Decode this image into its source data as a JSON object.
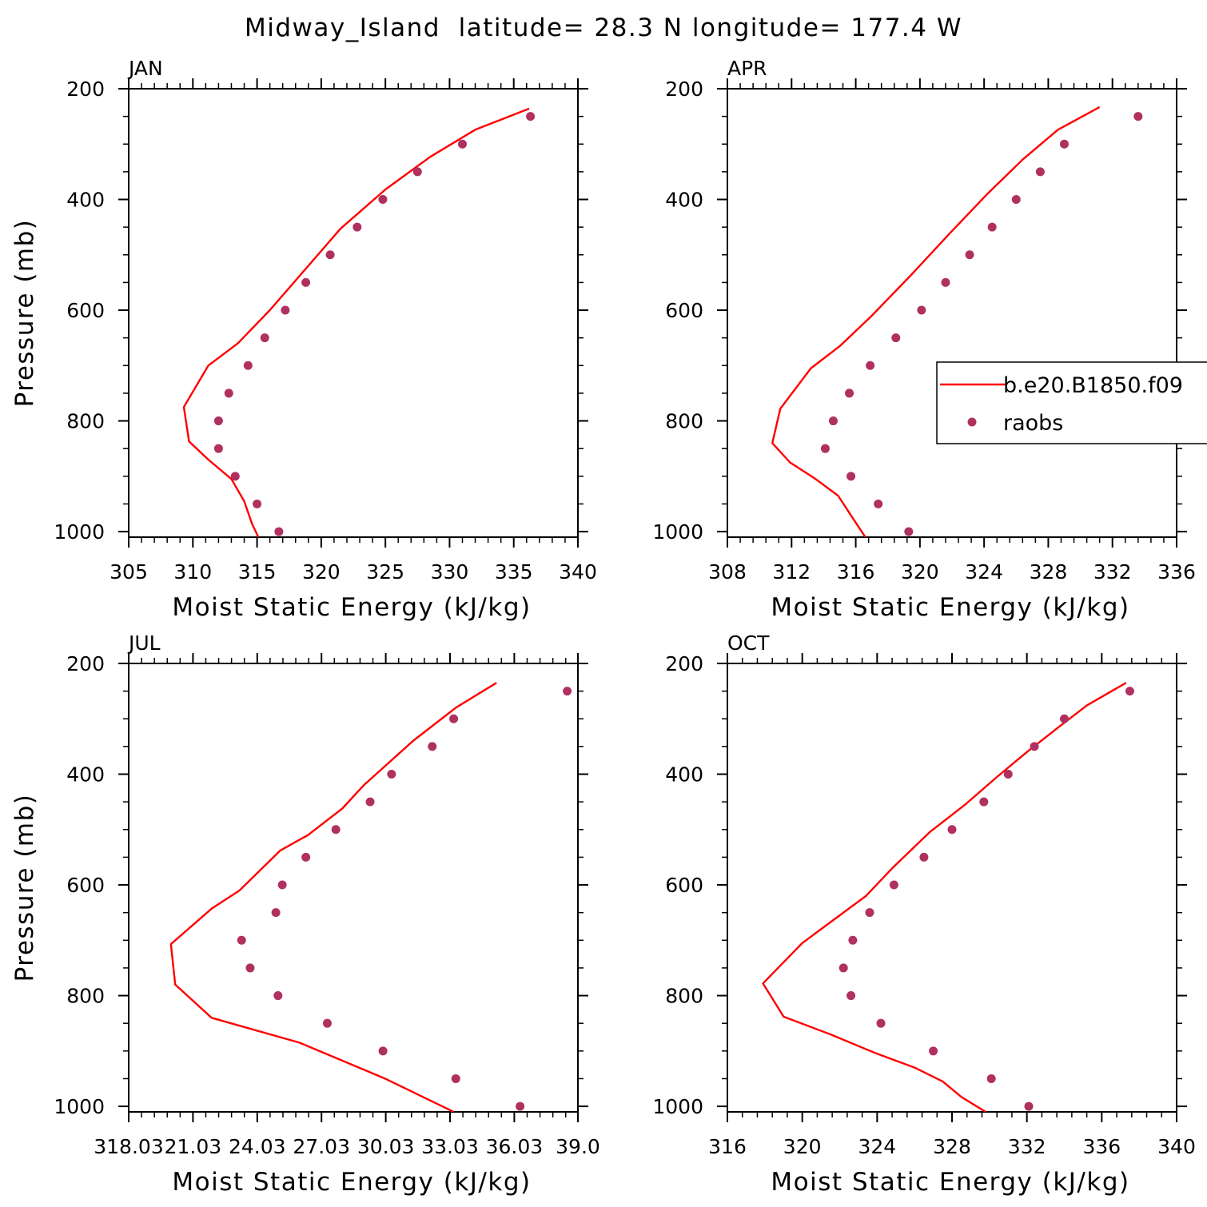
{
  "figure": {
    "title": "Midway_Island  latitude= 28.3 N longitude= 177.4 W"
  },
  "legend": {
    "entries": [
      {
        "label": "b.e20.B1850.f09",
        "type": "line",
        "color": "#ff0000"
      },
      {
        "label": "raobs",
        "type": "marker",
        "color": "#b03060"
      }
    ]
  },
  "chart_data": [
    {
      "type": "line",
      "panel_label": "JAN",
      "xlabel": "Moist Static Energy (kJ/kg)",
      "ylabel": "Pressure (mb)",
      "xlim": [
        305,
        340
      ],
      "ylim": [
        1010,
        200
      ],
      "y_inverted": true,
      "x_tick_labels": [
        "305",
        "310",
        "315",
        "320",
        "325",
        "330",
        "335",
        "340"
      ],
      "y_tick_labels": [
        "200",
        "400",
        "600",
        "800",
        "1000"
      ],
      "series": [
        {
          "name": "b.e20.B1850.f09",
          "style": "line",
          "color": "#ff0000",
          "x": [
            336.2,
            332.0,
            328.5,
            325.0,
            321.5,
            318.8,
            316.0,
            313.5,
            311.2,
            309.3,
            309.7,
            311.2,
            313.0,
            314.0,
            314.6,
            315.1
          ],
          "y": [
            236,
            274,
            323,
            382,
            453,
            525,
            600,
            660,
            700,
            775,
            837,
            870,
            905,
            945,
            985,
            1010
          ]
        },
        {
          "name": "raobs",
          "style": "markers",
          "color": "#b03060",
          "x": [
            336.3,
            331.0,
            327.5,
            324.8,
            322.8,
            320.7,
            318.8,
            317.2,
            315.6,
            314.3,
            312.8,
            312.0,
            312.0,
            313.3,
            315.0,
            316.7
          ],
          "y": [
            250,
            300,
            350,
            400,
            450,
            500,
            550,
            600,
            650,
            700,
            750,
            800,
            850,
            900,
            950,
            1000
          ]
        }
      ]
    },
    {
      "type": "line",
      "panel_label": "APR",
      "xlabel": "Moist Static Energy (kJ/kg)",
      "ylabel": "",
      "xlim": [
        308,
        336
      ],
      "ylim": [
        1010,
        200
      ],
      "y_inverted": true,
      "x_tick_labels": [
        "308",
        "312",
        "316",
        "320",
        "324",
        "328",
        "332",
        "336"
      ],
      "y_tick_labels": [
        "200",
        "400",
        "600",
        "800",
        "1000"
      ],
      "legend_in_panel": true,
      "series": [
        {
          "name": "b.e20.B1850.f09",
          "style": "line",
          "color": "#ff0000",
          "x": [
            331.2,
            328.6,
            326.4,
            324.2,
            321.9,
            319.5,
            317.0,
            315.0,
            313.2,
            311.3,
            310.8,
            311.9,
            313.5,
            314.9,
            315.8,
            316.6
          ],
          "y": [
            233,
            274,
            328,
            390,
            460,
            535,
            610,
            665,
            705,
            778,
            840,
            875,
            905,
            935,
            975,
            1010
          ]
        },
        {
          "name": "raobs",
          "style": "markers",
          "color": "#b03060",
          "x": [
            333.6,
            329.0,
            327.5,
            326.0,
            324.5,
            323.1,
            321.6,
            320.1,
            318.5,
            316.9,
            315.6,
            314.6,
            314.1,
            315.7,
            317.4,
            319.3
          ],
          "y": [
            250,
            300,
            350,
            400,
            450,
            500,
            550,
            600,
            650,
            700,
            750,
            800,
            850,
            900,
            950,
            1000
          ]
        }
      ]
    },
    {
      "type": "line",
      "panel_label": "JUL",
      "xlabel": "Moist Static Energy (kJ/kg)",
      "ylabel": "Pressure (mb)",
      "xlim": [
        318.03,
        339.0
      ],
      "ylim": [
        1010,
        200
      ],
      "y_inverted": true,
      "x_tick_labels": [
        "318.03",
        "21.03",
        "24.03",
        "27.03",
        "30.03",
        "33.03",
        "36.03",
        "39.0"
      ],
      "x_tick_values": [
        318.03,
        321.03,
        324.03,
        327.03,
        330.03,
        333.03,
        336.03,
        339.0
      ],
      "y_tick_labels": [
        "200",
        "400",
        "600",
        "800",
        "1000"
      ],
      "series": [
        {
          "name": "b.e20.B1850.f09",
          "style": "line",
          "color": "#ff0000",
          "x": [
            335.2,
            333.3,
            331.3,
            329.0,
            328.0,
            326.4,
            325.1,
            323.2,
            321.9,
            320.0,
            320.2,
            321.9,
            326.0,
            330.0,
            331.6,
            333.2
          ],
          "y": [
            235,
            280,
            340,
            420,
            462,
            510,
            538,
            610,
            643,
            707,
            780,
            840,
            885,
            950,
            980,
            1010
          ]
        },
        {
          "name": "raobs",
          "style": "markers",
          "color": "#b03060",
          "x": [
            338.5,
            333.2,
            332.2,
            330.3,
            329.3,
            327.7,
            326.3,
            325.2,
            324.9,
            323.3,
            323.7,
            325.0,
            327.3,
            329.9,
            333.3,
            336.3
          ],
          "y": [
            250,
            300,
            350,
            400,
            450,
            500,
            550,
            600,
            650,
            700,
            750,
            800,
            850,
            900,
            950,
            1000
          ]
        }
      ]
    },
    {
      "type": "line",
      "panel_label": "OCT",
      "xlabel": "Moist Static Energy (kJ/kg)",
      "ylabel": "",
      "xlim": [
        316,
        340
      ],
      "ylim": [
        1010,
        200
      ],
      "y_inverted": true,
      "x_tick_labels": [
        "316",
        "320",
        "324",
        "328",
        "332",
        "336",
        "340"
      ],
      "y_tick_labels": [
        "200",
        "400",
        "600",
        "800",
        "1000"
      ],
      "series": [
        {
          "name": "b.e20.B1850.f09",
          "style": "line",
          "color": "#ff0000",
          "x": [
            337.3,
            335.2,
            333.7,
            332.0,
            330.4,
            328.7,
            326.8,
            324.8,
            323.4,
            322.0,
            320.0,
            317.9,
            319.0,
            321.5,
            324.0,
            326.0,
            327.5,
            328.5,
            329.8
          ],
          "y": [
            235,
            276,
            315,
            360,
            405,
            455,
            505,
            570,
            620,
            655,
            705,
            778,
            838,
            870,
            905,
            930,
            955,
            983,
            1010
          ]
        },
        {
          "name": "raobs",
          "style": "markers",
          "color": "#b03060",
          "x": [
            337.5,
            334.0,
            332.4,
            331.0,
            329.7,
            328.0,
            326.5,
            324.9,
            323.6,
            322.7,
            322.2,
            322.6,
            324.2,
            327.0,
            330.1,
            332.1
          ],
          "y": [
            250,
            300,
            350,
            400,
            450,
            500,
            550,
            600,
            650,
            700,
            750,
            800,
            850,
            900,
            950,
            1000
          ]
        }
      ]
    }
  ]
}
